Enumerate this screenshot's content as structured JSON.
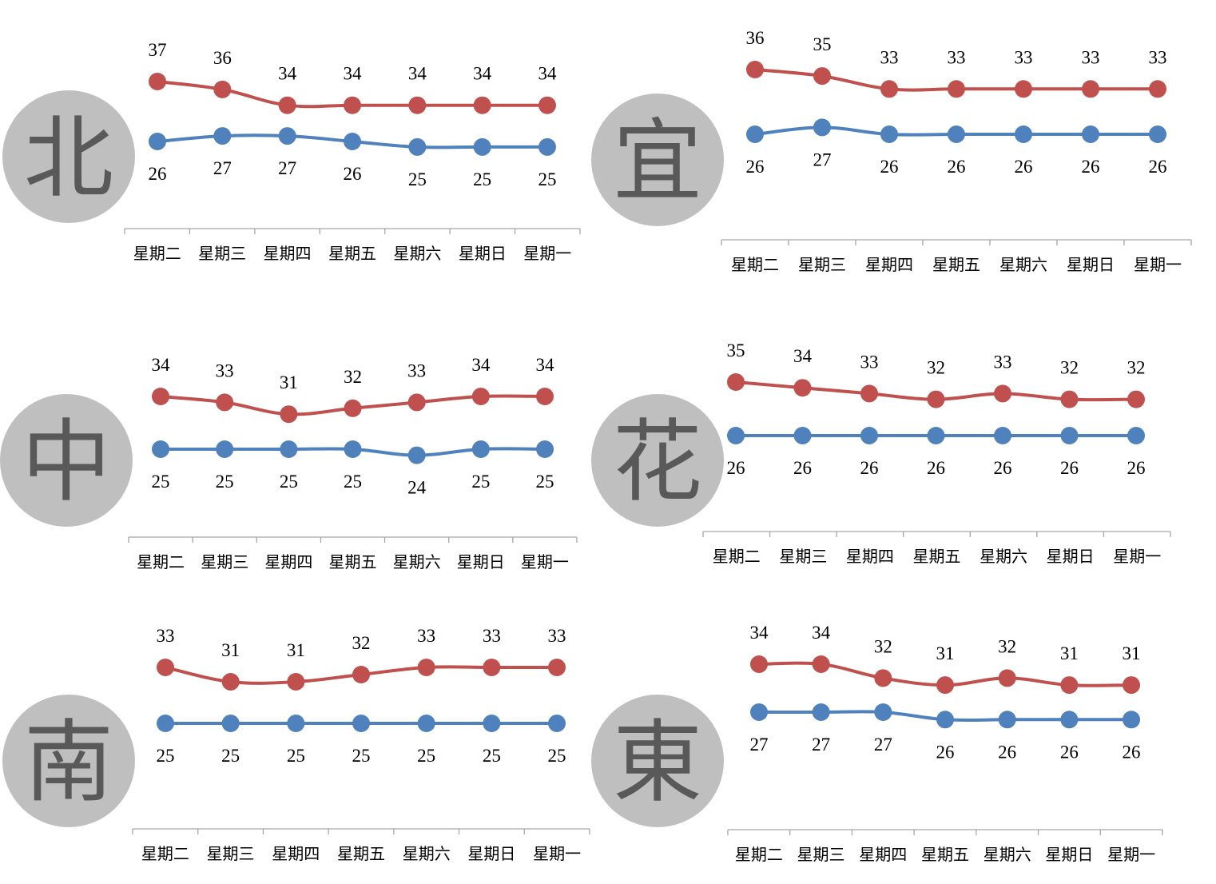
{
  "colors": {
    "high": "#c0504d",
    "low": "#4f81bd",
    "badge": "#bfbfbf",
    "badge_text": "#595959",
    "axis": "#a6a6a6",
    "text": "#000000"
  },
  "chart_data": [
    {
      "type": "line",
      "region": "北",
      "categories": [
        "星期二",
        "星期三",
        "星期四",
        "星期五",
        "星期六",
        "星期日",
        "星期一"
      ],
      "series": [
        {
          "values": [
            37,
            36,
            34,
            34,
            34,
            34,
            34
          ],
          "color": "#c0504d"
        },
        {
          "values": [
            26,
            27,
            27,
            26,
            25,
            25,
            25
          ],
          "color": "#4f81bd"
        }
      ]
    },
    {
      "type": "line",
      "region": "宜",
      "categories": [
        "星期二",
        "星期三",
        "星期四",
        "星期五",
        "星期六",
        "星期日",
        "星期一"
      ],
      "series": [
        {
          "values": [
            36,
            35,
            33,
            33,
            33,
            33,
            33
          ],
          "color": "#c0504d"
        },
        {
          "values": [
            26,
            27,
            26,
            26,
            26,
            26,
            26
          ],
          "color": "#4f81bd"
        }
      ]
    },
    {
      "type": "line",
      "region": "中",
      "categories": [
        "星期二",
        "星期三",
        "星期四",
        "星期五",
        "星期六",
        "星期日",
        "星期一"
      ],
      "series": [
        {
          "values": [
            34,
            33,
            31,
            32,
            33,
            34,
            34
          ],
          "color": "#c0504d"
        },
        {
          "values": [
            25,
            25,
            25,
            25,
            24,
            25,
            25
          ],
          "color": "#4f81bd"
        }
      ]
    },
    {
      "type": "line",
      "region": "花",
      "categories": [
        "星期二",
        "星期三",
        "星期四",
        "星期五",
        "星期六",
        "星期日",
        "星期一"
      ],
      "series": [
        {
          "values": [
            35,
            34,
            33,
            32,
            33,
            32,
            32
          ],
          "color": "#c0504d"
        },
        {
          "values": [
            26,
            26,
            26,
            26,
            26,
            26,
            26
          ],
          "color": "#4f81bd"
        }
      ]
    },
    {
      "type": "line",
      "region": "南",
      "categories": [
        "星期二",
        "星期三",
        "星期四",
        "星期五",
        "星期六",
        "星期日",
        "星期一"
      ],
      "series": [
        {
          "values": [
            33,
            31,
            31,
            32,
            33,
            33,
            33
          ],
          "color": "#c0504d"
        },
        {
          "values": [
            25,
            25,
            25,
            25,
            25,
            25,
            25
          ],
          "color": "#4f81bd"
        }
      ]
    },
    {
      "type": "line",
      "region": "東",
      "categories": [
        "星期二",
        "星期三",
        "星期四",
        "星期五",
        "星期六",
        "星期日",
        "星期一"
      ],
      "series": [
        {
          "values": [
            34,
            34,
            32,
            31,
            32,
            31,
            31
          ],
          "color": "#c0504d"
        },
        {
          "values": [
            27,
            27,
            27,
            26,
            26,
            26,
            26
          ],
          "color": "#4f81bd"
        }
      ]
    }
  ]
}
